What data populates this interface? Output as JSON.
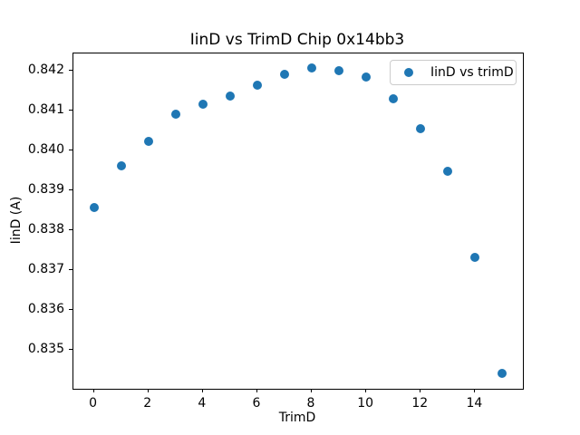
{
  "chart_data": {
    "type": "scatter",
    "title": "IinD vs TrimD Chip 0x14bb3",
    "xlabel": "TrimD",
    "ylabel": "IinD (A)",
    "grid": false,
    "xlim": [
      -0.75,
      15.75
    ],
    "ylim": [
      0.83403,
      0.84243
    ],
    "xtick_values": [
      0,
      2,
      4,
      6,
      8,
      10,
      12,
      14
    ],
    "xtick_labels": [
      "0",
      "2",
      "4",
      "6",
      "8",
      "10",
      "12",
      "14"
    ],
    "ytick_values": [
      0.835,
      0.836,
      0.837,
      0.838,
      0.839,
      0.84,
      0.841,
      0.842
    ],
    "ytick_labels": [
      "0.835",
      "0.836",
      "0.837",
      "0.838",
      "0.839",
      "0.840",
      "0.841",
      "0.842"
    ],
    "series": [
      {
        "name": "IinD vs trimD",
        "marker_color": "#1f77b4",
        "x": [
          0,
          1,
          2,
          3,
          4,
          5,
          6,
          7,
          8,
          9,
          10,
          11,
          12,
          13,
          14,
          15
        ],
        "y": [
          0.83857,
          0.83961,
          0.84022,
          0.84091,
          0.84116,
          0.84136,
          0.84164,
          0.84191,
          0.84206,
          0.84199,
          0.84183,
          0.8413,
          0.84055,
          0.83949,
          0.83733,
          0.83441
        ]
      }
    ],
    "legend": {
      "position": "upper right",
      "entries": [
        {
          "label": "IinD vs trimD",
          "marker_color": "#1f77b4"
        }
      ]
    }
  }
}
